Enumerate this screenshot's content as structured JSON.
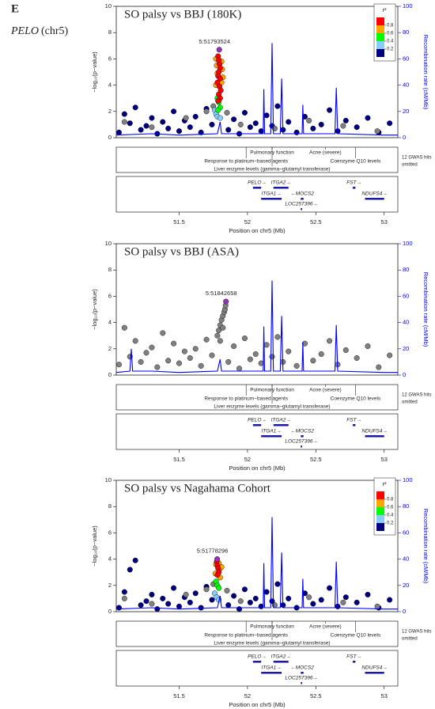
{
  "panel_label": "E",
  "gene": "PELO",
  "chr": "(chr5)",
  "chart_data": [
    {
      "type": "scatter",
      "title": "SO palsy vs BBJ (180K)",
      "lead_label": "5:51793524",
      "xlabel": "Position on chr5 (Mb)",
      "ylabel": "−log₁₀(p−value)",
      "y2label": "Recombination rate (cM/Mb)",
      "xlim": [
        51.04,
        53.1
      ],
      "xticks": [
        51.5,
        52,
        52.5,
        53
      ],
      "ylim": [
        0,
        10
      ],
      "yticks": [
        0,
        2,
        4,
        6,
        8,
        10
      ],
      "y2lim": [
        0,
        100
      ],
      "y2ticks": [
        0,
        20,
        40,
        60,
        80,
        100
      ],
      "legend": {
        "title": "r²",
        "ticks": [
          0.2,
          0.4,
          0.6,
          0.8
        ],
        "colors": [
          "#000080",
          "#87cefa",
          "#00ff00",
          "#ffa500",
          "#ff0000"
        ]
      },
      "series": [
        {
          "color": "#000080",
          "x": [
            51.06,
            51.1,
            51.14,
            51.18,
            51.22,
            51.26,
            51.3,
            51.34,
            51.38,
            51.42,
            51.46,
            51.5,
            51.54,
            51.58,
            51.62,
            51.66,
            51.7,
            51.74,
            51.86,
            51.9,
            51.94,
            51.98,
            52.02,
            52.06,
            52.1,
            52.14,
            52.18,
            52.22,
            52.26,
            52.3,
            52.36,
            52.42,
            52.48,
            52.54,
            52.6,
            52.66,
            52.72,
            52.8,
            52.88,
            52.96,
            53.04
          ],
          "values": [
            0.4,
            1.8,
            1.1,
            2.3,
            0.6,
            0.9,
            1.5,
            0.3,
            1.2,
            0.7,
            2.0,
            0.5,
            1.3,
            0.8,
            1.6,
            0.4,
            2.2,
            1.0,
            0.6,
            1.4,
            0.3,
            1.9,
            0.8,
            1.1,
            0.5,
            1.7,
            0.9,
            2.4,
            0.6,
            1.2,
            0.4,
            1.6,
            0.7,
            1.0,
            2.1,
            0.5,
            1.3,
            0.8,
            1.5,
            0.4,
            1.1
          ]
        },
        {
          "color": "#808080",
          "x": [
            51.1,
            51.3,
            51.55,
            51.7,
            51.75,
            51.85,
            51.95,
            52.2,
            52.45,
            52.7,
            52.95
          ],
          "values": [
            1.2,
            0.8,
            1.5,
            2.0,
            2.4,
            1.9,
            1.0,
            0.7,
            1.3,
            0.9,
            0.5
          ]
        },
        {
          "color": "#87cefa",
          "x": [
            51.76,
            51.77,
            51.78,
            51.8
          ],
          "values": [
            2.1,
            1.8,
            1.6,
            1.5
          ]
        },
        {
          "color": "#00ff00",
          "x": [
            51.78,
            51.79,
            51.8,
            51.785
          ],
          "values": [
            3.0,
            2.7,
            2.3,
            2.1
          ]
        },
        {
          "color": "#ffa500",
          "x": [
            51.77,
            51.81,
            51.775,
            51.815,
            51.78,
            51.82,
            51.77,
            51.81
          ],
          "values": [
            6.0,
            5.8,
            5.5,
            5.2,
            4.9,
            4.6,
            4.0,
            4.2
          ]
        },
        {
          "color": "#ff0000",
          "x": [
            51.785,
            51.79,
            51.795,
            51.8,
            51.79,
            51.785,
            51.8,
            51.78,
            51.795,
            51.805,
            51.79,
            51.8,
            51.785
          ],
          "values": [
            6.2,
            5.9,
            5.6,
            5.3,
            5.0,
            4.7,
            4.5,
            4.2,
            3.9,
            3.6,
            3.3,
            3.0,
            2.8
          ]
        },
        {
          "color": "#9632b8",
          "x": [
            51.7935
          ],
          "values": [
            6.7
          ]
        },
        {
          "color": "#0000ff",
          "axis": "y2",
          "x": [
            51.04,
            51.3,
            51.5,
            51.78,
            51.8,
            51.81,
            52.0,
            52.115,
            52.12,
            52.125,
            52.17,
            52.18,
            52.19,
            52.24,
            52.25,
            52.26,
            52.4,
            52.405,
            52.41,
            52.64,
            52.65,
            52.66,
            53.0,
            53.1
          ],
          "values": [
            2,
            3,
            2,
            3,
            12,
            3,
            3,
            3,
            37,
            3,
            3,
            72,
            3,
            3,
            45,
            3,
            3,
            25,
            3,
            3,
            38,
            3,
            2,
            2
          ]
        }
      ],
      "gwas_hits": [
        {
          "label": "Pulmonary function",
          "x": 52.18
        },
        {
          "label": "Response to platinum−based agents",
          "x": 51.99
        },
        {
          "label": "Acne (severe)",
          "x": 52.57
        },
        {
          "label": "Coenzyme Q10 levels",
          "x": 52.79
        },
        {
          "label": "Liver enzyme levels (gamma−glutamyl transferase)",
          "x": 52.18
        }
      ],
      "hits_omitted": [
        "12 GWAS hits",
        "omitted"
      ],
      "genes": [
        {
          "label": "PELO→",
          "start": 52.04,
          "end": 52.1
        },
        {
          "label": "ITGA2→",
          "start": 52.19,
          "end": 52.3
        },
        {
          "label": "FST→",
          "start": 52.77,
          "end": 52.79
        },
        {
          "label": "ITGA1→",
          "start": 52.1,
          "end": 52.25
        },
        {
          "label": "←MOCS2",
          "start": 52.39,
          "end": 52.41
        },
        {
          "label": "NDUFS4→",
          "start": 52.86,
          "end": 53.0
        },
        {
          "label": "LOC257396→",
          "start": 52.39,
          "end": 52.4
        }
      ]
    },
    {
      "type": "scatter",
      "title": "SO palsy vs BBJ (ASA)",
      "lead_label": "5:51842658",
      "xlabel": "Position on chr5 (Mb)",
      "ylabel": "−log₁₀(p−value)",
      "y2label": "Recombination rate (cM/Mb)",
      "xlim": [
        51.04,
        53.1
      ],
      "xticks": [
        51.5,
        52,
        52.5,
        53
      ],
      "ylim": [
        0,
        10
      ],
      "yticks": [
        0,
        2,
        4,
        6,
        8,
        10
      ],
      "y2lim": [
        0,
        100
      ],
      "y2ticks": [
        0,
        20,
        40,
        60,
        80,
        100
      ],
      "series": [
        {
          "color": "#808080",
          "x": [
            51.06,
            51.1,
            51.14,
            51.18,
            51.22,
            51.26,
            51.3,
            51.34,
            51.38,
            51.42,
            51.46,
            51.5,
            51.54,
            51.58,
            51.62,
            51.66,
            51.7,
            51.74,
            51.86,
            51.9,
            51.94,
            51.98,
            52.02,
            52.06,
            52.1,
            52.14,
            52.18,
            52.22,
            52.26,
            52.3,
            52.36,
            52.42,
            52.48,
            52.54,
            52.6,
            52.66,
            52.72,
            52.8,
            52.88,
            52.96,
            53.04
          ],
          "values": [
            0.8,
            3.6,
            1.4,
            2.6,
            1.0,
            1.7,
            2.1,
            0.6,
            3.2,
            1.1,
            2.4,
            0.9,
            1.8,
            1.3,
            2.0,
            0.7,
            2.7,
            1.5,
            1.0,
            2.2,
            0.5,
            2.8,
            1.2,
            1.6,
            0.9,
            2.3,
            1.4,
            2.9,
            1.0,
            1.8,
            0.7,
            2.4,
            1.1,
            1.6,
            2.6,
            0.8,
            1.9,
            1.3,
            2.2,
            0.6,
            1.5
          ]
        },
        {
          "color": "#808080",
          "x": [
            51.78,
            51.79,
            51.8,
            51.81,
            51.82,
            51.83,
            51.835,
            51.84,
            51.8,
            51.82
          ],
          "values": [
            3.0,
            3.4,
            3.8,
            4.2,
            4.5,
            4.8,
            5.0,
            5.3,
            2.6,
            3.6
          ]
        },
        {
          "color": "#9632b8",
          "x": [
            51.8427
          ],
          "values": [
            5.6
          ]
        },
        {
          "color": "#0000ff",
          "axis": "y2",
          "x": [
            51.04,
            51.14,
            51.15,
            51.16,
            51.3,
            51.5,
            51.78,
            51.8,
            51.81,
            52.0,
            52.115,
            52.12,
            52.125,
            52.17,
            52.18,
            52.19,
            52.24,
            52.25,
            52.26,
            52.4,
            52.405,
            52.41,
            52.64,
            52.65,
            52.66,
            53.0,
            53.1
          ],
          "values": [
            2,
            3,
            20,
            3,
            3,
            2,
            3,
            12,
            3,
            3,
            3,
            37,
            3,
            3,
            72,
            3,
            3,
            45,
            3,
            3,
            25,
            3,
            3,
            38,
            3,
            2,
            2
          ]
        }
      ],
      "gwas_hits": [
        {
          "label": "Pulmonary function",
          "x": 52.18
        },
        {
          "label": "Response to platinum−based agents",
          "x": 51.99
        },
        {
          "label": "Acne (severe)",
          "x": 52.57
        },
        {
          "label": "Coenzyme Q10 levels",
          "x": 52.79
        },
        {
          "label": "Liver enzyme levels (gamma−glutamyl transferase)",
          "x": 52.18
        }
      ],
      "hits_omitted": [
        "12 GWAS hits",
        "omitted"
      ],
      "genes": [
        {
          "label": "PELO→",
          "start": 52.04,
          "end": 52.1
        },
        {
          "label": "ITGA2→",
          "start": 52.19,
          "end": 52.3
        },
        {
          "label": "FST→",
          "start": 52.77,
          "end": 52.79
        },
        {
          "label": "ITGA1→",
          "start": 52.1,
          "end": 52.25
        },
        {
          "label": "←MOCS2",
          "start": 52.39,
          "end": 52.41
        },
        {
          "label": "NDUFS4→",
          "start": 52.86,
          "end": 53.0
        },
        {
          "label": "LOC257396→",
          "start": 52.39,
          "end": 52.4
        }
      ]
    },
    {
      "type": "scatter",
      "title": "SO palsy vs Nagahama Cohort",
      "lead_label": "5:51778296",
      "xlabel": "Position on chr5 (Mb)",
      "ylabel": "−log₁₀(p−value)",
      "y2label": "Recombination rate (cM/Mb)",
      "xlim": [
        51.04,
        53.1
      ],
      "xticks": [
        51.5,
        52,
        52.5,
        53
      ],
      "ylim": [
        0,
        10
      ],
      "yticks": [
        0,
        2,
        4,
        6,
        8,
        10
      ],
      "y2lim": [
        0,
        100
      ],
      "y2ticks": [
        0,
        20,
        40,
        60,
        80,
        100
      ],
      "legend": {
        "title": "r²",
        "ticks": [
          0.2,
          0.4,
          0.6,
          0.8
        ],
        "colors": [
          "#000080",
          "#87cefa",
          "#00ff00",
          "#ffa500",
          "#ff0000"
        ]
      },
      "series": [
        {
          "color": "#000080",
          "x": [
            51.06,
            51.1,
            51.14,
            51.18,
            51.22,
            51.26,
            51.3,
            51.34,
            51.38,
            51.42,
            51.46,
            51.5,
            51.54,
            51.58,
            51.62,
            51.66,
            51.7,
            51.74,
            51.86,
            51.9,
            51.94,
            51.98,
            52.02,
            52.06,
            52.1,
            52.14,
            52.18,
            52.22,
            52.26,
            52.3,
            52.36,
            52.42,
            52.48,
            52.54,
            52.6,
            52.66,
            52.72,
            52.8,
            52.88,
            52.96,
            53.04
          ],
          "values": [
            0.3,
            1.5,
            3.2,
            3.9,
            0.5,
            0.8,
            1.3,
            0.2,
            1.0,
            0.6,
            1.8,
            0.4,
            1.1,
            0.7,
            1.4,
            0.3,
            1.9,
            0.9,
            0.5,
            1.2,
            0.2,
            1.7,
            0.7,
            1.0,
            0.4,
            1.5,
            0.8,
            2.1,
            0.5,
            1.0,
            0.3,
            1.4,
            0.6,
            0.9,
            1.8,
            0.4,
            1.1,
            0.7,
            1.3,
            0.3,
            0.9
          ]
        },
        {
          "color": "#808080",
          "x": [
            51.1,
            51.3,
            51.55,
            51.7,
            51.75,
            51.85,
            51.95,
            52.2,
            52.45,
            52.7,
            52.95
          ],
          "values": [
            1.0,
            0.6,
            1.3,
            1.7,
            2.1,
            1.6,
            0.8,
            0.5,
            1.1,
            0.7,
            0.4
          ]
        },
        {
          "color": "#87cefa",
          "x": [
            51.76,
            51.775,
            51.79
          ],
          "values": [
            1.4,
            1.1,
            0.9
          ]
        },
        {
          "color": "#00ff00",
          "x": [
            51.77,
            51.78,
            51.79
          ],
          "values": [
            2.3,
            2.0,
            1.8
          ]
        },
        {
          "color": "#ffa500",
          "x": [
            51.77,
            51.79,
            51.795,
            51.765,
            51.8,
            51.81
          ],
          "values": [
            3.6,
            3.7,
            3.2,
            2.9,
            2.6,
            3.4
          ]
        },
        {
          "color": "#ff0000",
          "x": [
            51.775,
            51.78,
            51.785,
            51.79,
            51.78
          ],
          "values": [
            3.8,
            3.5,
            3.3,
            3.0,
            2.8
          ]
        },
        {
          "color": "#9632b8",
          "x": [
            51.7783
          ],
          "values": [
            4.0
          ]
        },
        {
          "color": "#0000ff",
          "axis": "y2",
          "x": [
            51.04,
            51.3,
            51.5,
            51.78,
            51.8,
            51.81,
            52.0,
            52.115,
            52.12,
            52.125,
            52.17,
            52.18,
            52.19,
            52.24,
            52.25,
            52.26,
            52.4,
            52.405,
            52.41,
            52.64,
            52.65,
            52.66,
            53.0,
            53.1
          ],
          "values": [
            2,
            3,
            2,
            3,
            12,
            3,
            3,
            3,
            37,
            3,
            3,
            72,
            3,
            3,
            45,
            3,
            3,
            25,
            3,
            3,
            38,
            3,
            2,
            2
          ]
        }
      ],
      "gwas_hits": [
        {
          "label": "Pulmonary function",
          "x": 52.18
        },
        {
          "label": "Response to platinum−based agents",
          "x": 51.99
        },
        {
          "label": "Acne (severe)",
          "x": 52.57
        },
        {
          "label": "Coenzyme Q10 levels",
          "x": 52.79
        },
        {
          "label": "Liver enzyme levels (gamma−glutamyl transferase)",
          "x": 52.18
        }
      ],
      "hits_omitted": [
        "12 GWAS hits",
        "omitted"
      ],
      "genes": [
        {
          "label": "PELO→",
          "start": 52.04,
          "end": 52.1
        },
        {
          "label": "ITGA2→",
          "start": 52.19,
          "end": 52.3
        },
        {
          "label": "FST→",
          "start": 52.77,
          "end": 52.79
        },
        {
          "label": "ITGA1→",
          "start": 52.1,
          "end": 52.25
        },
        {
          "label": "←MOCS2",
          "start": 52.39,
          "end": 52.41
        },
        {
          "label": "NDUFS4→",
          "start": 52.86,
          "end": 53.0
        },
        {
          "label": "LOC257396→",
          "start": 52.39,
          "end": 52.4
        }
      ]
    }
  ]
}
